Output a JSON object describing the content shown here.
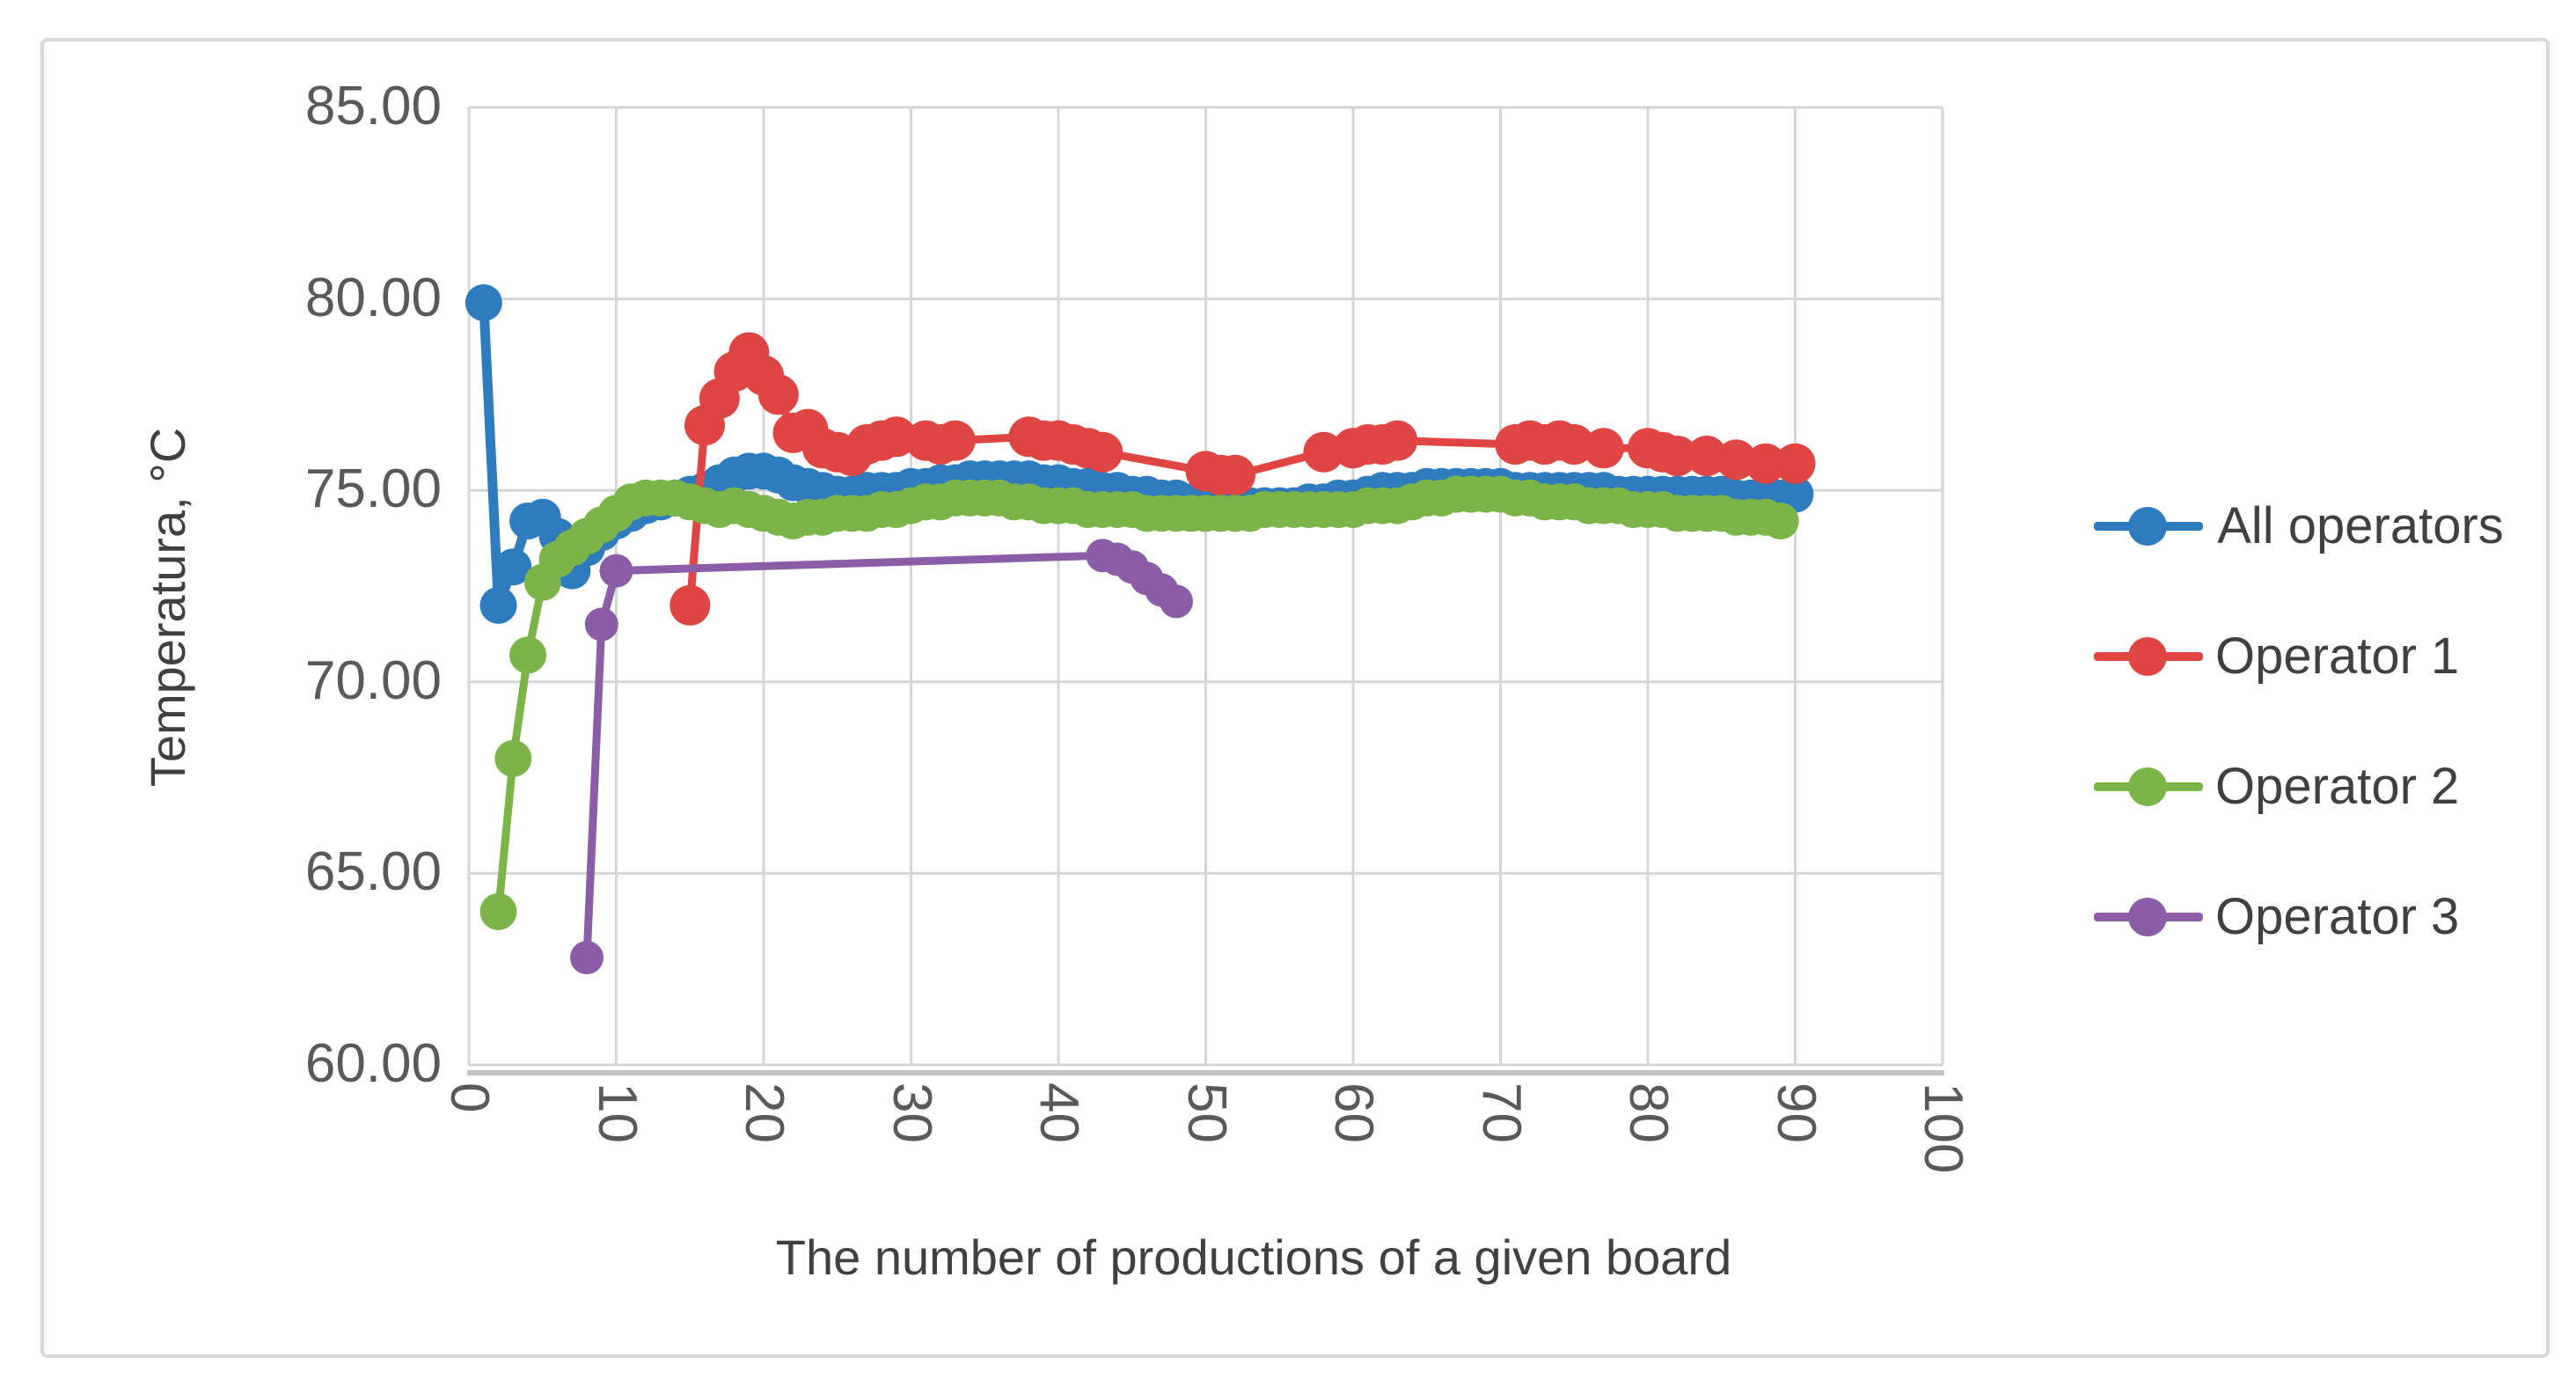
{
  "chart_data": {
    "type": "line",
    "title": "",
    "xlabel": "The number of productions of a given board",
    "ylabel": "Temperatura, °C",
    "grid": true,
    "legend_position": "right",
    "x_axis": {
      "min": 0,
      "max": 100,
      "tick_labels": [
        "0",
        "10",
        "20",
        "30",
        "40",
        "50",
        "60",
        "70",
        "80",
        "90",
        "100"
      ]
    },
    "y_axis": {
      "min": 60,
      "max": 85,
      "tick_labels": [
        "85.00",
        "80.00",
        "75.00",
        "70.00",
        "65.00",
        "60.00"
      ]
    },
    "series": [
      {
        "name": "All operators",
        "color": "#2E7BBD",
        "marker": "circle",
        "points": [
          [
            1,
            79.9
          ],
          [
            2,
            72.0
          ],
          [
            3,
            73.0
          ],
          [
            4,
            74.2
          ],
          [
            5,
            74.3
          ],
          [
            6,
            73.8
          ],
          [
            7,
            72.9
          ],
          [
            8,
            73.5
          ],
          [
            9,
            73.9
          ],
          [
            10,
            74.2
          ],
          [
            11,
            74.4
          ],
          [
            12,
            74.6
          ],
          [
            13,
            74.7
          ],
          [
            14,
            74.8
          ],
          [
            15,
            74.9
          ],
          [
            16,
            75.0
          ],
          [
            17,
            75.2
          ],
          [
            18,
            75.4
          ],
          [
            19,
            75.5
          ],
          [
            20,
            75.5
          ],
          [
            21,
            75.4
          ],
          [
            22,
            75.2
          ],
          [
            23,
            75.1
          ],
          [
            24,
            75.0
          ],
          [
            25,
            74.9
          ],
          [
            26,
            74.9
          ],
          [
            27,
            75.0
          ],
          [
            28,
            75.0
          ],
          [
            29,
            75.0
          ],
          [
            30,
            75.1
          ],
          [
            31,
            75.1
          ],
          [
            32,
            75.2
          ],
          [
            33,
            75.2
          ],
          [
            34,
            75.3
          ],
          [
            35,
            75.3
          ],
          [
            36,
            75.3
          ],
          [
            37,
            75.3
          ],
          [
            38,
            75.3
          ],
          [
            39,
            75.2
          ],
          [
            40,
            75.2
          ],
          [
            41,
            75.1
          ],
          [
            42,
            75.1
          ],
          [
            43,
            75.0
          ],
          [
            44,
            75.0
          ],
          [
            45,
            74.9
          ],
          [
            46,
            74.9
          ],
          [
            47,
            74.8
          ],
          [
            48,
            74.8
          ],
          [
            49,
            74.7
          ],
          [
            50,
            74.7
          ],
          [
            51,
            74.6
          ],
          [
            52,
            74.6
          ],
          [
            53,
            74.6
          ],
          [
            54,
            74.6
          ],
          [
            55,
            74.6
          ],
          [
            56,
            74.6
          ],
          [
            57,
            74.7
          ],
          [
            58,
            74.7
          ],
          [
            59,
            74.8
          ],
          [
            60,
            74.8
          ],
          [
            61,
            74.9
          ],
          [
            62,
            75.0
          ],
          [
            63,
            75.0
          ],
          [
            64,
            75.0
          ],
          [
            65,
            75.1
          ],
          [
            66,
            75.1
          ],
          [
            67,
            75.1
          ],
          [
            68,
            75.1
          ],
          [
            69,
            75.1
          ],
          [
            70,
            75.1
          ],
          [
            71,
            75.0
          ],
          [
            72,
            75.0
          ],
          [
            73,
            75.0
          ],
          [
            74,
            75.0
          ],
          [
            75,
            75.0
          ],
          [
            76,
            75.0
          ],
          [
            77,
            75.0
          ],
          [
            78,
            74.9
          ],
          [
            79,
            74.9
          ],
          [
            80,
            74.9
          ],
          [
            81,
            74.9
          ],
          [
            82,
            74.9
          ],
          [
            83,
            74.9
          ],
          [
            84,
            74.9
          ],
          [
            85,
            74.9
          ],
          [
            86,
            74.8
          ],
          [
            87,
            74.8
          ],
          [
            88,
            74.8
          ],
          [
            89,
            74.8
          ],
          [
            90,
            74.9
          ]
        ]
      },
      {
        "name": "Operator 1",
        "color": "#DE4543",
        "marker": "circle",
        "points": [
          [
            15,
            72.0
          ],
          [
            16,
            76.7
          ],
          [
            17,
            77.4
          ],
          [
            18,
            78.1
          ],
          [
            19,
            78.6
          ],
          [
            20,
            78.0
          ],
          [
            21,
            77.5
          ],
          [
            22,
            76.5
          ],
          [
            23,
            76.6
          ],
          [
            24,
            76.1
          ],
          [
            25,
            76.0
          ],
          [
            26,
            75.9
          ],
          [
            27,
            76.2
          ],
          [
            28,
            76.3
          ],
          [
            29,
            76.4
          ],
          [
            31,
            76.3
          ],
          [
            32,
            76.2
          ],
          [
            33,
            76.3
          ],
          [
            38,
            76.4
          ],
          [
            39,
            76.3
          ],
          [
            40,
            76.3
          ],
          [
            41,
            76.2
          ],
          [
            42,
            76.1
          ],
          [
            43,
            76.0
          ],
          [
            50,
            75.5
          ],
          [
            51,
            75.4
          ],
          [
            52,
            75.4
          ],
          [
            58,
            76.0
          ],
          [
            60,
            76.1
          ],
          [
            61,
            76.2
          ],
          [
            62,
            76.2
          ],
          [
            63,
            76.3
          ],
          [
            71,
            76.2
          ],
          [
            72,
            76.3
          ],
          [
            73,
            76.2
          ],
          [
            74,
            76.3
          ],
          [
            75,
            76.2
          ],
          [
            77,
            76.1
          ],
          [
            80,
            76.1
          ],
          [
            81,
            76.0
          ],
          [
            82,
            75.9
          ],
          [
            84,
            75.9
          ],
          [
            86,
            75.8
          ],
          [
            88,
            75.7
          ],
          [
            90,
            75.7
          ]
        ]
      },
      {
        "name": "Operator 2",
        "color": "#7BB54A",
        "marker": "circle",
        "points": [
          [
            2,
            64.0
          ],
          [
            3,
            68.0
          ],
          [
            4,
            70.7
          ],
          [
            5,
            72.6
          ],
          [
            6,
            73.2
          ],
          [
            7,
            73.5
          ],
          [
            8,
            73.8
          ],
          [
            9,
            74.1
          ],
          [
            10,
            74.4
          ],
          [
            11,
            74.7
          ],
          [
            12,
            74.8
          ],
          [
            13,
            74.8
          ],
          [
            14,
            74.8
          ],
          [
            15,
            74.7
          ],
          [
            16,
            74.6
          ],
          [
            17,
            74.5
          ],
          [
            18,
            74.6
          ],
          [
            19,
            74.5
          ],
          [
            20,
            74.4
          ],
          [
            21,
            74.3
          ],
          [
            22,
            74.2
          ],
          [
            23,
            74.3
          ],
          [
            24,
            74.3
          ],
          [
            25,
            74.4
          ],
          [
            26,
            74.4
          ],
          [
            27,
            74.4
          ],
          [
            28,
            74.5
          ],
          [
            29,
            74.5
          ],
          [
            30,
            74.6
          ],
          [
            31,
            74.7
          ],
          [
            32,
            74.7
          ],
          [
            33,
            74.8
          ],
          [
            34,
            74.8
          ],
          [
            35,
            74.8
          ],
          [
            36,
            74.8
          ],
          [
            37,
            74.7
          ],
          [
            38,
            74.7
          ],
          [
            39,
            74.6
          ],
          [
            40,
            74.6
          ],
          [
            41,
            74.6
          ],
          [
            42,
            74.5
          ],
          [
            43,
            74.5
          ],
          [
            44,
            74.5
          ],
          [
            45,
            74.5
          ],
          [
            46,
            74.4
          ],
          [
            47,
            74.4
          ],
          [
            48,
            74.4
          ],
          [
            49,
            74.4
          ],
          [
            50,
            74.4
          ],
          [
            51,
            74.4
          ],
          [
            52,
            74.4
          ],
          [
            53,
            74.4
          ],
          [
            54,
            74.5
          ],
          [
            55,
            74.5
          ],
          [
            56,
            74.5
          ],
          [
            57,
            74.5
          ],
          [
            58,
            74.5
          ],
          [
            59,
            74.5
          ],
          [
            60,
            74.5
          ],
          [
            61,
            74.6
          ],
          [
            62,
            74.6
          ],
          [
            63,
            74.6
          ],
          [
            64,
            74.7
          ],
          [
            65,
            74.8
          ],
          [
            66,
            74.8
          ],
          [
            67,
            74.9
          ],
          [
            68,
            74.9
          ],
          [
            69,
            74.9
          ],
          [
            70,
            74.9
          ],
          [
            71,
            74.8
          ],
          [
            72,
            74.8
          ],
          [
            73,
            74.7
          ],
          [
            74,
            74.7
          ],
          [
            75,
            74.7
          ],
          [
            76,
            74.6
          ],
          [
            77,
            74.6
          ],
          [
            78,
            74.6
          ],
          [
            79,
            74.5
          ],
          [
            80,
            74.5
          ],
          [
            81,
            74.5
          ],
          [
            82,
            74.4
          ],
          [
            83,
            74.4
          ],
          [
            84,
            74.4
          ],
          [
            85,
            74.4
          ],
          [
            86,
            74.3
          ],
          [
            87,
            74.3
          ],
          [
            88,
            74.3
          ],
          [
            89,
            74.2
          ]
        ]
      },
      {
        "name": "Operator 3",
        "color": "#8A5DA6",
        "marker": "circle",
        "points": [
          [
            8,
            62.8
          ],
          [
            9,
            71.5
          ],
          [
            10,
            72.9
          ],
          [
            43,
            73.3
          ],
          [
            44,
            73.2
          ],
          [
            45,
            73.0
          ],
          [
            46,
            72.7
          ],
          [
            47,
            72.4
          ],
          [
            48,
            72.1
          ]
        ]
      }
    ]
  },
  "colors": {
    "background": "#FFFFFF",
    "gridline": "#D6D6D6",
    "axis_line": "#C3C3C3",
    "tick_text": "#595959",
    "title_text": "#404040",
    "frame_border": "#D8D8D8"
  }
}
